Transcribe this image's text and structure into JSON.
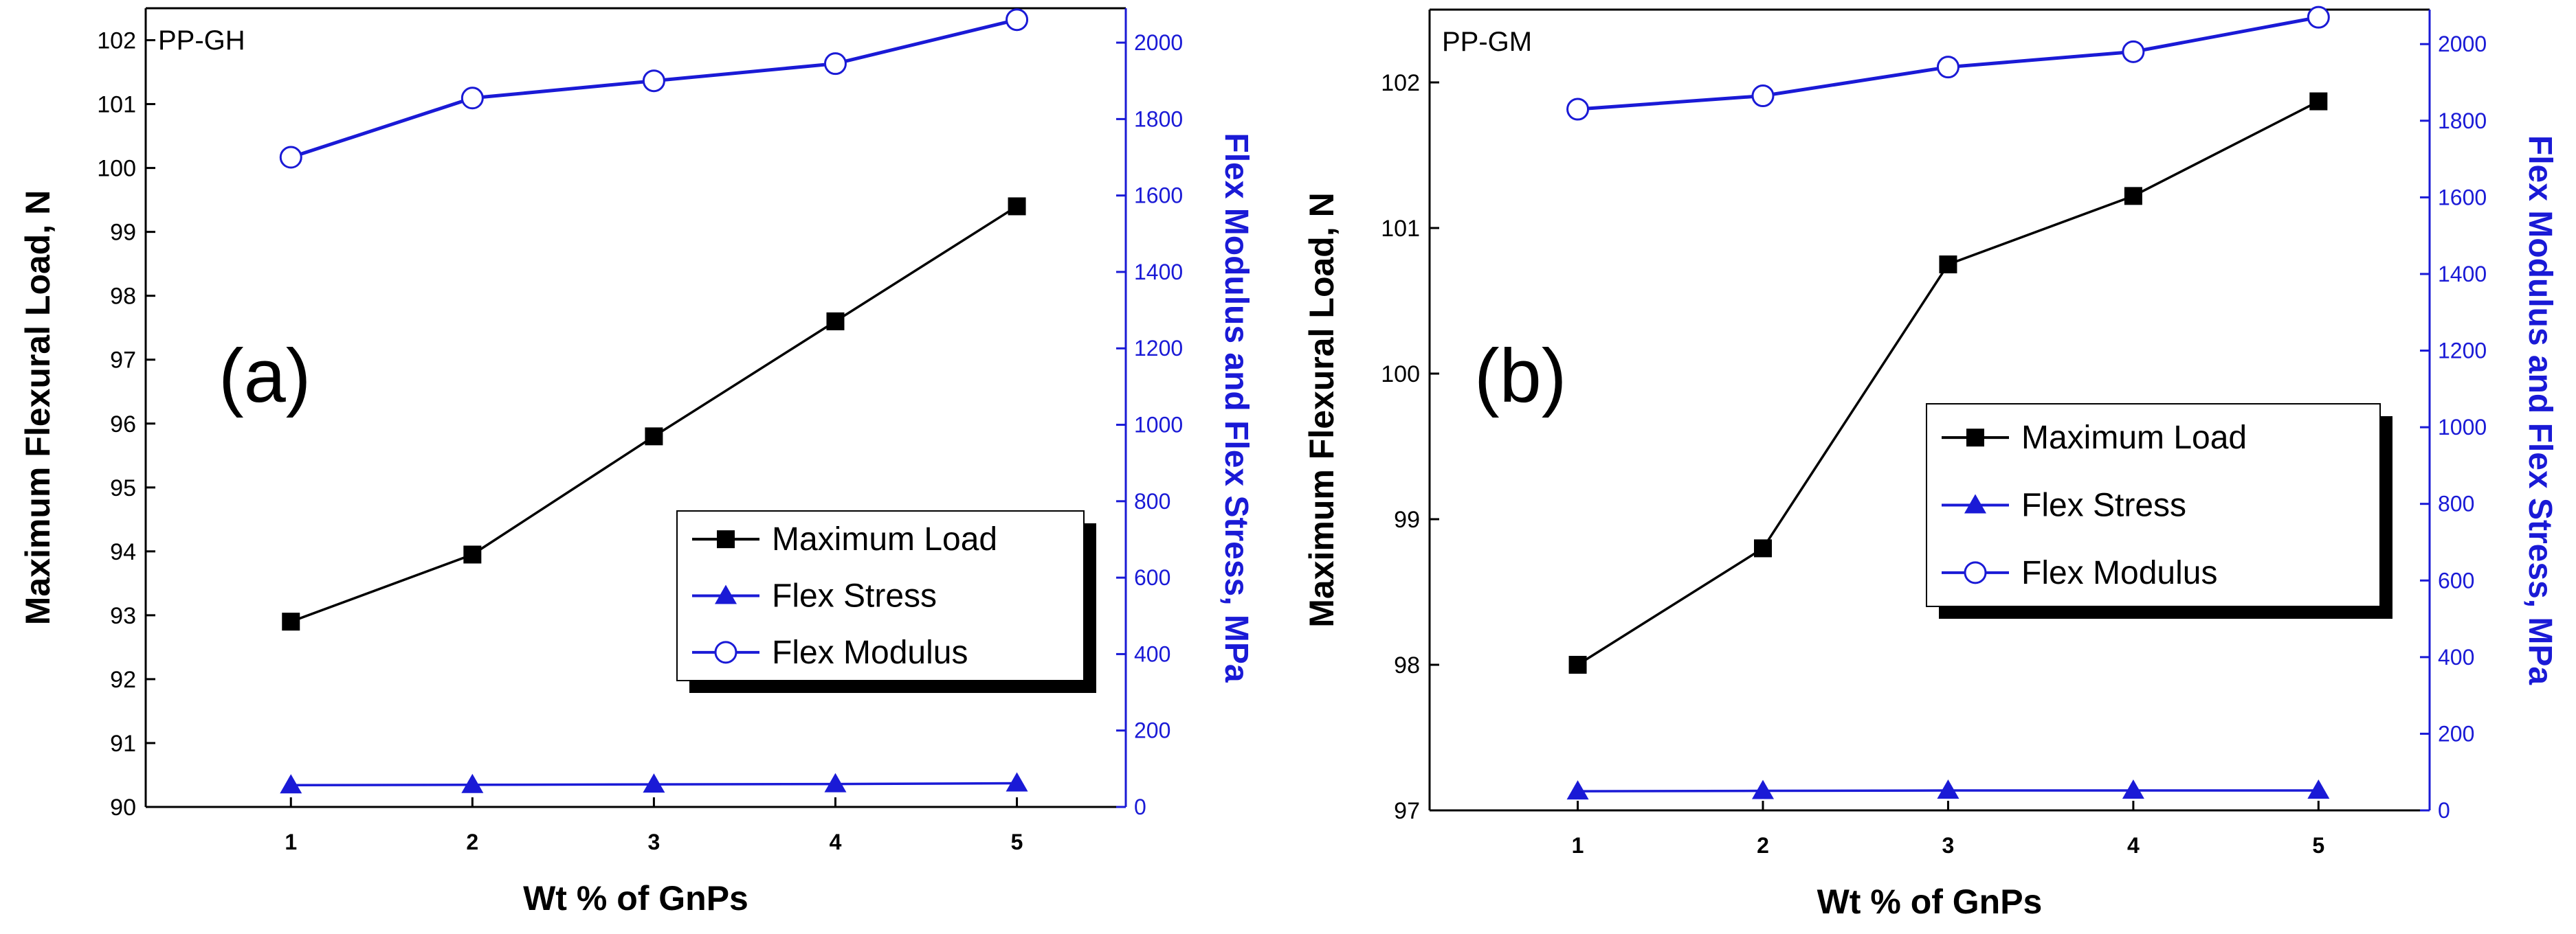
{
  "colors": {
    "load": "#000000",
    "stress": "#1a1ad6",
    "modulus": "#1a1ad6",
    "right_axis": "#1a1ad6"
  },
  "legend_labels": [
    "Maximum Load",
    "Flex Stress",
    "Flex Modulus"
  ],
  "chart_data": [
    {
      "type": "line",
      "panel_tag": "PP-GH",
      "panel_letter": "(a)",
      "xlabel": "Wt % of GnPs",
      "ylabel_left": "Maximum Flexural Load, N",
      "ylabel_right": "Flex Modulus and Flex Stress, MPa",
      "x": [
        1,
        2,
        3,
        4,
        5
      ],
      "xlim": [
        0.2,
        5.6
      ],
      "ylim_left": [
        90,
        102.5
      ],
      "ylim_right": [
        0,
        2090
      ],
      "yticks_left": [
        90,
        91,
        92,
        93,
        94,
        95,
        96,
        97,
        98,
        99,
        100,
        101,
        102
      ],
      "yticks_right": [
        0,
        200,
        400,
        600,
        800,
        1000,
        1200,
        1400,
        1600,
        1800,
        2000
      ],
      "legend_position": "bottom-right",
      "series": [
        {
          "name": "Maximum Load",
          "axis": "left",
          "marker": "square",
          "values": [
            92.9,
            93.95,
            95.8,
            97.6,
            99.4
          ]
        },
        {
          "name": "Flex Stress",
          "axis": "right",
          "marker": "triangle",
          "values": [
            57,
            58,
            59,
            60,
            62
          ]
        },
        {
          "name": "Flex Modulus",
          "axis": "right",
          "marker": "circle-open",
          "values": [
            1700,
            1855,
            1900,
            1945,
            2060
          ]
        }
      ]
    },
    {
      "type": "line",
      "panel_tag": "PP-GM",
      "panel_letter": "(b)",
      "xlabel": "Wt % of GnPs",
      "ylabel_left": "Maximum Flexural  Load, N",
      "ylabel_right": "Flex Modulus and Flex Stress, MPa",
      "x": [
        1,
        2,
        3,
        4,
        5
      ],
      "xlim": [
        0.2,
        5.6
      ],
      "ylim_left": [
        97,
        102.5
      ],
      "ylim_right": [
        0,
        2090
      ],
      "yticks_left": [
        97,
        98,
        99,
        100,
        101,
        102
      ],
      "yticks_right": [
        0,
        200,
        400,
        600,
        800,
        1000,
        1200,
        1400,
        1600,
        1800,
        2000
      ],
      "legend_position": "center-right",
      "series": [
        {
          "name": "Maximum Load",
          "axis": "left",
          "marker": "square",
          "values": [
            98.0,
            98.8,
            100.75,
            101.22,
            101.87
          ]
        },
        {
          "name": "Flex Stress",
          "axis": "right",
          "marker": "triangle",
          "values": [
            50,
            51,
            52,
            52,
            52
          ]
        },
        {
          "name": "Flex Modulus",
          "axis": "right",
          "marker": "circle-open",
          "values": [
            1830,
            1865,
            1940,
            1980,
            2070
          ]
        }
      ]
    }
  ]
}
